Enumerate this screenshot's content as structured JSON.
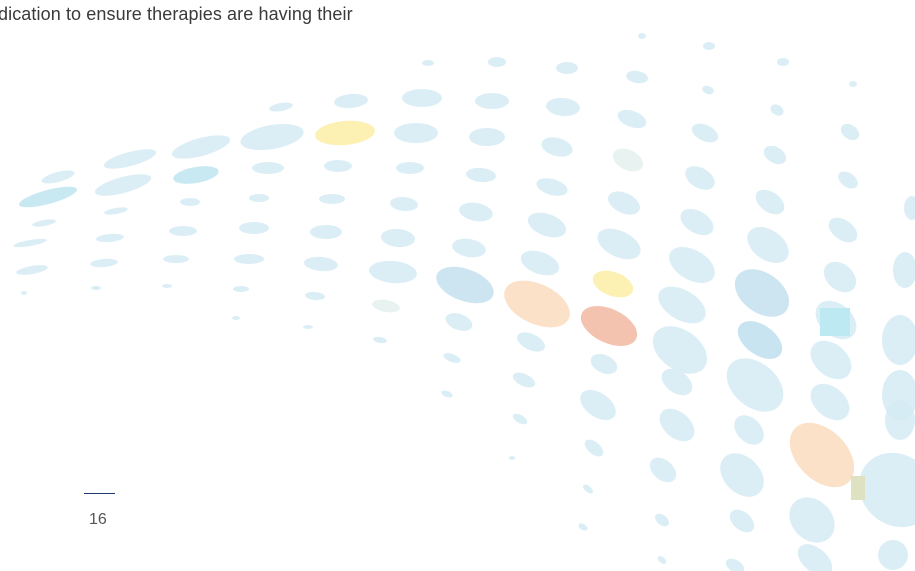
{
  "body": {
    "text": "dication to ensure therapies are having their"
  },
  "footer": {
    "page_number": "16"
  }
}
